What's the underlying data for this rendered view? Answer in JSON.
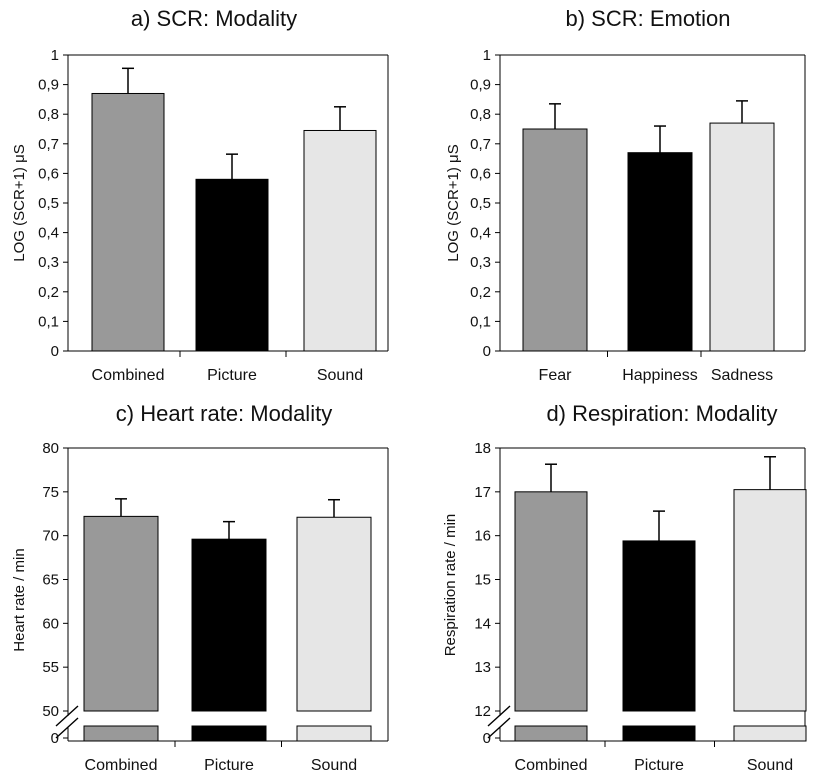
{
  "chart_data": [
    {
      "type": "bar",
      "title": "a) SCR: Modality",
      "ylabel": "LOG (SCR+1) μS",
      "categories": [
        "Combined",
        "Picture",
        "Sound"
      ],
      "values": [
        0.87,
        0.58,
        0.745
      ],
      "errors": [
        0.085,
        0.085,
        0.08
      ],
      "colors": [
        "#999999",
        "#000000",
        "#e6e6e6"
      ],
      "ylim": [
        0,
        1
      ],
      "yticks": [
        0,
        0.1,
        0.2,
        0.3,
        0.4,
        0.5,
        0.6,
        0.7,
        0.8,
        0.9,
        1
      ],
      "ytick_labels": [
        "0",
        "0,1",
        "0,2",
        "0,3",
        "0,4",
        "0,5",
        "0,6",
        "0,7",
        "0,8",
        "0,9",
        "1"
      ],
      "axis_break": false
    },
    {
      "type": "bar",
      "title": "b) SCR: Emotion",
      "ylabel": "LOG (SCR+1) μS",
      "categories": [
        "Fear",
        "Happiness",
        "Sadness"
      ],
      "values": [
        0.75,
        0.67,
        0.77
      ],
      "errors": [
        0.085,
        0.09,
        0.075
      ],
      "colors": [
        "#999999",
        "#000000",
        "#e6e6e6"
      ],
      "ylim": [
        0,
        1
      ],
      "yticks": [
        0,
        0.1,
        0.2,
        0.3,
        0.4,
        0.5,
        0.6,
        0.7,
        0.8,
        0.9,
        1
      ],
      "ytick_labels": [
        "0",
        "0,1",
        "0,2",
        "0,3",
        "0,4",
        "0,5",
        "0,6",
        "0,7",
        "0,8",
        "0,9",
        "1"
      ],
      "axis_break": false
    },
    {
      "type": "bar",
      "title": "c) Heart rate: Modality",
      "ylabel": "Heart rate / min",
      "categories": [
        "Combined",
        "Picture",
        "Sound"
      ],
      "values": [
        72.2,
        69.6,
        72.1
      ],
      "errors": [
        2.0,
        2.0,
        2.0
      ],
      "colors": [
        "#999999",
        "#000000",
        "#e6e6e6"
      ],
      "ylim": [
        50,
        80
      ],
      "yticks": [
        50,
        55,
        60,
        65,
        70,
        75,
        80
      ],
      "ytick_labels": [
        "50",
        "55",
        "60",
        "65",
        "70",
        "75",
        "80"
      ],
      "axis_break": true,
      "break_tick_label": "0"
    },
    {
      "type": "bar",
      "title": "d) Respiration: Modality",
      "ylabel": "Respiration rate / min",
      "categories": [
        "Combined",
        "Picture",
        "Sound"
      ],
      "values": [
        17.0,
        15.88,
        17.05
      ],
      "errors": [
        0.63,
        0.68,
        0.75
      ],
      "colors": [
        "#999999",
        "#000000",
        "#e6e6e6"
      ],
      "ylim": [
        12,
        18
      ],
      "yticks": [
        12,
        13,
        14,
        15,
        16,
        17,
        18
      ],
      "ytick_labels": [
        "12",
        "13",
        "14",
        "15",
        "16",
        "17",
        "18"
      ],
      "axis_break": true,
      "break_tick_label": "0"
    }
  ]
}
